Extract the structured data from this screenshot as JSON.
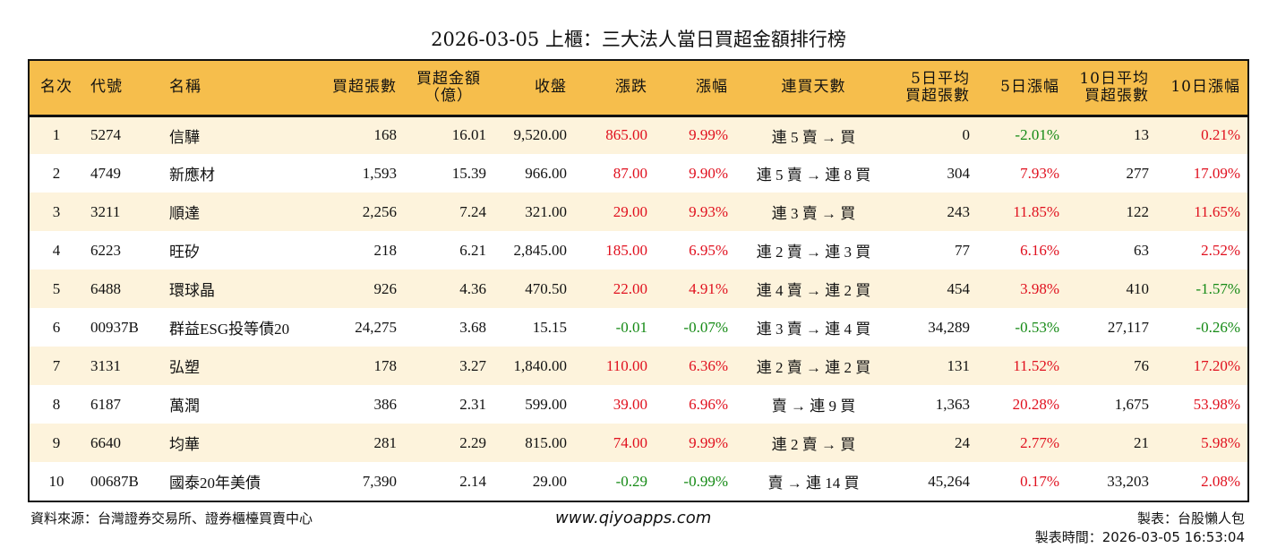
{
  "title": "2026-03-05 上櫃：三大法人當日買超金額排行榜",
  "colors": {
    "header": "#F6BE4C",
    "stripe": "#FDF3DC",
    "up": "#E0101E",
    "down": "#158A15"
  },
  "headers": [
    [
      "名次"
    ],
    [
      "代號"
    ],
    [
      "名稱"
    ],
    [
      "買超張數"
    ],
    [
      "買超金額",
      "（億）"
    ],
    [
      "收盤"
    ],
    [
      "漲跌"
    ],
    [
      "漲幅"
    ],
    [
      "連買天數"
    ],
    [
      "5日平均",
      "買超張數"
    ],
    [
      "5日漲幅"
    ],
    [
      "10日平均",
      "買超張數"
    ],
    [
      "10日漲幅"
    ]
  ],
  "rows": [
    [
      "1",
      "5274",
      "信驊",
      "168",
      "16.01",
      "9,520.00",
      "865.00",
      "9.99%",
      "連 5 賣 → 買",
      "0",
      "-2.01%",
      "13",
      "0.21%"
    ],
    [
      "2",
      "4749",
      "新應材",
      "1,593",
      "15.39",
      "966.00",
      "87.00",
      "9.90%",
      "連 5 賣 → 連 8 買",
      "304",
      "7.93%",
      "277",
      "17.09%"
    ],
    [
      "3",
      "3211",
      "順達",
      "2,256",
      "7.24",
      "321.00",
      "29.00",
      "9.93%",
      "連 3 賣 → 買",
      "243",
      "11.85%",
      "122",
      "11.65%"
    ],
    [
      "4",
      "6223",
      "旺矽",
      "218",
      "6.21",
      "2,845.00",
      "185.00",
      "6.95%",
      "連 2 賣 → 連 3 買",
      "77",
      "6.16%",
      "63",
      "2.52%"
    ],
    [
      "5",
      "6488",
      "環球晶",
      "926",
      "4.36",
      "470.50",
      "22.00",
      "4.91%",
      "連 4 賣 → 連 2 買",
      "454",
      "3.98%",
      "410",
      "-1.57%"
    ],
    [
      "6",
      "00937B",
      "群益ESG投等債20",
      "24,275",
      "3.68",
      "15.15",
      "-0.01",
      "-0.07%",
      "連 3 賣 → 連 4 買",
      "34,289",
      "-0.53%",
      "27,117",
      "-0.26%"
    ],
    [
      "7",
      "3131",
      "弘塑",
      "178",
      "3.27",
      "1,840.00",
      "110.00",
      "6.36%",
      "連 2 賣 → 連 2 買",
      "131",
      "11.52%",
      "76",
      "17.20%"
    ],
    [
      "8",
      "6187",
      "萬潤",
      "386",
      "2.31",
      "599.00",
      "39.00",
      "6.96%",
      "賣 → 連 9 買",
      "1,363",
      "20.28%",
      "1,675",
      "53.98%"
    ],
    [
      "9",
      "6640",
      "均華",
      "281",
      "2.29",
      "815.00",
      "74.00",
      "9.99%",
      "連 2 賣 → 買",
      "24",
      "2.77%",
      "21",
      "5.98%"
    ],
    [
      "10",
      "00687B",
      "國泰20年美債",
      "7,390",
      "2.14",
      "29.00",
      "-0.29",
      "-0.99%",
      "賣 → 連 14 買",
      "45,264",
      "0.17%",
      "33,203",
      "2.08%"
    ]
  ],
  "footer": {
    "source": "資料來源：台灣證券交易所、證券櫃檯買賣中心",
    "site": "www.qiyoapps.com",
    "maker": "製表：台股懶人包",
    "time": "製表時間：2026-03-05 16:53:04"
  }
}
